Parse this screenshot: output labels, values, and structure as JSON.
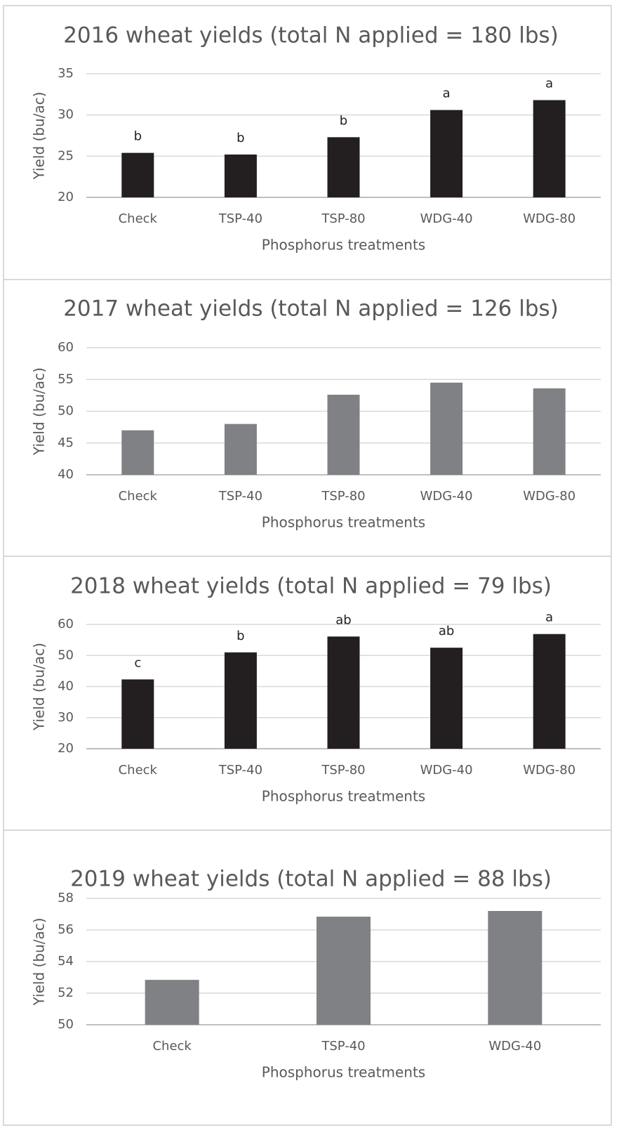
{
  "chart_data": [
    {
      "type": "bar",
      "title": "2016 wheat yields (total N applied = 180 lbs)",
      "x_label": "Phosphorus treatments",
      "y_label": "Yield (bu/ac)",
      "categories": [
        "Check",
        "TSP-40",
        "TSP-80",
        "WDG-40",
        "WDG-80"
      ],
      "values": [
        25.4,
        25.2,
        27.3,
        30.6,
        31.8
      ],
      "annotations": [
        "b",
        "b",
        "b",
        "a",
        "a"
      ],
      "color": "#231f20",
      "ylim": [
        20,
        35
      ],
      "yticks": [
        20,
        25,
        30,
        35
      ],
      "grid": true
    },
    {
      "type": "bar",
      "title": "2017 wheat yields (total N applied = 126 lbs)",
      "x_label": "Phosphorus treatments",
      "y_label": "Yield (bu/ac)",
      "categories": [
        "Check",
        "TSP-40",
        "TSP-80",
        "WDG-40",
        "WDG-80"
      ],
      "values": [
        47.0,
        48.0,
        52.6,
        54.5,
        53.6
      ],
      "color": "#808184",
      "ylim": [
        40,
        60
      ],
      "yticks": [
        40,
        45,
        50,
        55,
        60
      ],
      "grid": true
    },
    {
      "type": "bar",
      "title": "2018 wheat yields (total N applied = 79 lbs)",
      "x_label": "Phosphorus treatments",
      "y_label": "Yield (bu/ac)",
      "categories": [
        "Check",
        "TSP-40",
        "TSP-80",
        "WDG-40",
        "WDG-80"
      ],
      "values": [
        42.3,
        51.0,
        56.1,
        52.5,
        56.9
      ],
      "annotations": [
        "c",
        "b",
        "ab",
        "ab",
        "a"
      ],
      "color": "#231f20",
      "ylim": [
        20,
        60
      ],
      "yticks": [
        20,
        30,
        40,
        50,
        60
      ],
      "grid": true
    },
    {
      "type": "bar",
      "title": "2019 wheat yields (total N applied = 88 lbs)",
      "x_label": "Phosphorus treatments",
      "y_label": "Yield (bu/ac)",
      "categories": [
        "Check",
        "TSP-40",
        "WDG-40"
      ],
      "values": [
        52.84,
        56.84,
        57.2
      ],
      "color": "#808184",
      "ylim": [
        50,
        58
      ],
      "yticks": [
        50,
        52,
        54,
        56,
        58
      ],
      "grid": true
    }
  ]
}
